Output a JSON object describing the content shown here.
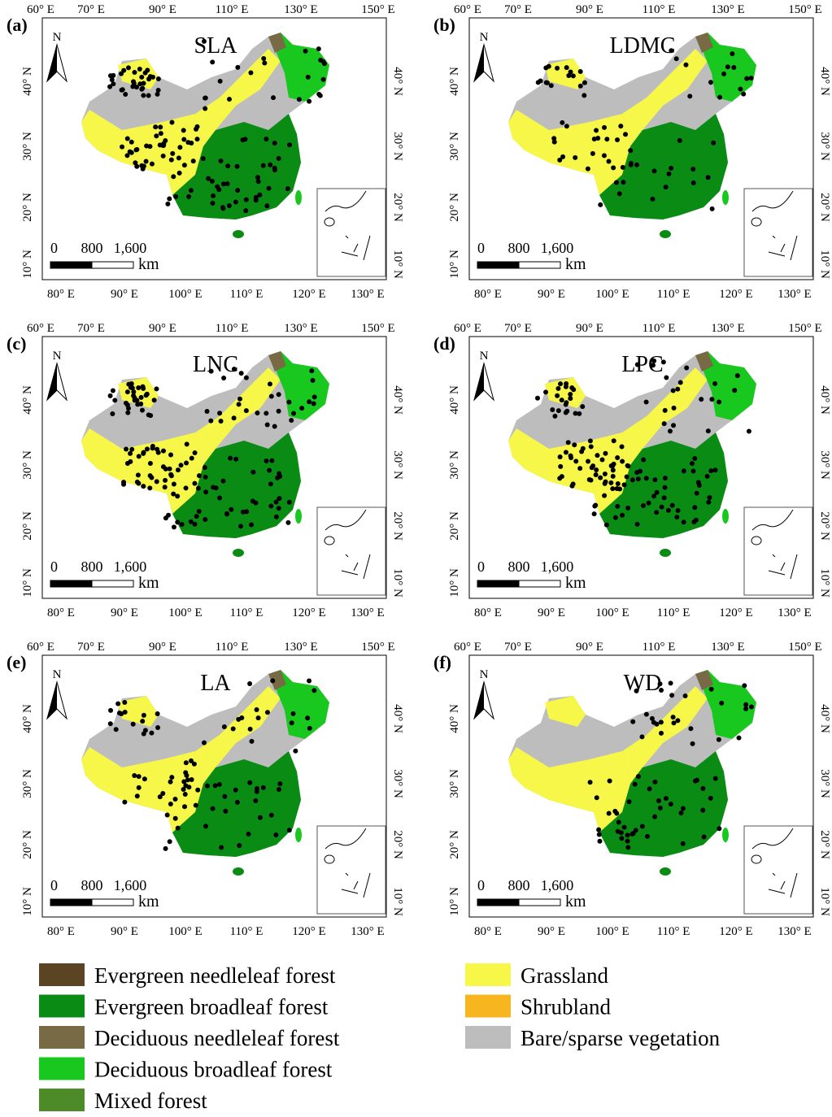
{
  "panels": [
    {
      "letter": "(a)",
      "title": "SLA"
    },
    {
      "letter": "(b)",
      "title": "LDMC"
    },
    {
      "letter": "(c)",
      "title": "LNC"
    },
    {
      "letter": "(d)",
      "title": "LPC"
    },
    {
      "letter": "(e)",
      "title": "LA"
    },
    {
      "letter": "(f)",
      "title": "WD"
    }
  ],
  "top_longitudes": [
    "60° E",
    "70° E",
    "90° E",
    "110° E",
    "130° E",
    "150° E"
  ],
  "bottom_longitudes": [
    "80° E",
    "90° E",
    "100° E",
    "110° E",
    "120° E",
    "130° E"
  ],
  "latitudes": [
    "10° N",
    "20° N",
    "30° N",
    "40° N"
  ],
  "north_arrow": "N",
  "scale_bar": {
    "labels": [
      "0",
      "800",
      "1,600"
    ],
    "unit": "km"
  },
  "legend": [
    {
      "name": "Evergreen needleleaf forest",
      "color": "#5a4424"
    },
    {
      "name": "Evergreen broadleaf forest",
      "color": "#0a8c14"
    },
    {
      "name": "Deciduous needleleaf forest",
      "color": "#776a45"
    },
    {
      "name": "Deciduous broadleaf forest",
      "color": "#18c81e"
    },
    {
      "name": "Mixed forest",
      "color": "#4d8a28"
    },
    {
      "name": "Grassland",
      "color": "#f7f74a"
    },
    {
      "name": "Shrubland",
      "color": "#f7b520"
    },
    {
      "name": "Bare/sparse vegetation",
      "color": "#bdbdbd"
    }
  ]
}
